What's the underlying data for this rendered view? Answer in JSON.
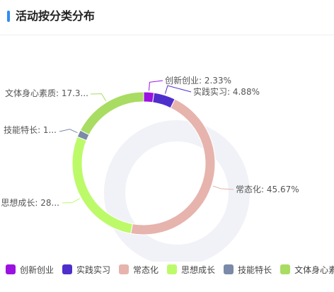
{
  "header": {
    "title": "活动按分类分布"
  },
  "chart_data": {
    "type": "pie",
    "variant": "donut",
    "legend_position": "bottom",
    "series": [
      {
        "name": "创新创业",
        "value": 2.33,
        "label": "创新创业: 2.33%",
        "color": "#9b11e0"
      },
      {
        "name": "实践实习",
        "value": 4.88,
        "label": "实践实习: 4.88%",
        "color": "#4f2fcc"
      },
      {
        "name": "常态化",
        "value": 45.67,
        "label": "常态化: 45.67%",
        "color": "#e6b4ad"
      },
      {
        "name": "思想成长",
        "value": 28.2,
        "label": "思想成长: 28...",
        "color": "#bdfa6a"
      },
      {
        "name": "技能特长",
        "value": 1.6,
        "label": "技能特长: 1...",
        "color": "#7a8aa8"
      },
      {
        "name": "文体身心素质",
        "value": 17.32,
        "label": "文体身心素质: 17.3...",
        "color": "#a9dc63"
      }
    ]
  }
}
